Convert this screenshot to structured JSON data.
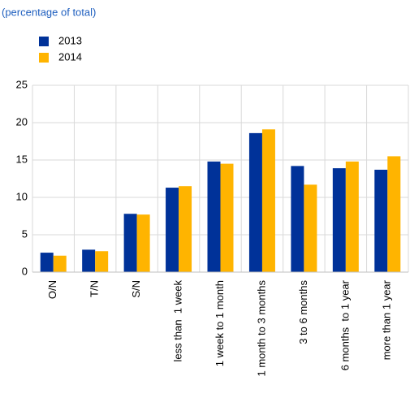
{
  "chart_data": {
    "type": "bar",
    "subtitle": "(percentage of total)",
    "categories": [
      "O/N",
      "T/N",
      "S/N",
      "less than  1 week",
      "1 week to 1 month",
      "1 month to 3 months",
      "3 to 6 months",
      "6 months  to 1 year",
      "more than 1 year"
    ],
    "series": [
      {
        "name": "2013",
        "color": "#003299",
        "values": [
          2.6,
          3.0,
          7.8,
          11.3,
          14.8,
          18.6,
          14.2,
          13.9,
          13.7
        ]
      },
      {
        "name": "2014",
        "color": "#ffb400",
        "values": [
          2.2,
          2.8,
          7.7,
          11.5,
          14.5,
          19.1,
          11.7,
          14.8,
          15.5
        ]
      }
    ],
    "ylim": [
      0,
      25
    ],
    "yticks": [
      0,
      5,
      10,
      15,
      20,
      25
    ],
    "grid": true
  }
}
